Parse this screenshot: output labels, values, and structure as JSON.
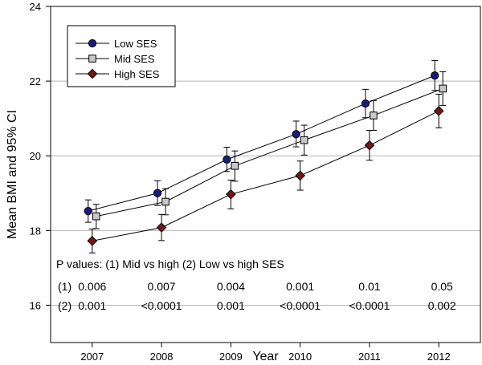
{
  "chart_data": {
    "type": "line",
    "title": "",
    "xlabel": "Year",
    "ylabel": "Mean BMI and 95% CI",
    "x": [
      2007,
      2008,
      2009,
      2010,
      2011,
      2012
    ],
    "xlim": [
      2006.4,
      2012.6
    ],
    "ylim": [
      15,
      24
    ],
    "yticks": [
      16,
      18,
      20,
      22,
      24
    ],
    "gridlines_y": [
      16,
      18,
      20,
      22
    ],
    "grid": "horizontal",
    "legend_position": "top-left",
    "series": [
      {
        "name": "Low SES",
        "marker": "circle",
        "color": "#1a1a7e",
        "values": [
          18.52,
          19.0,
          19.9,
          20.58,
          21.4,
          22.15
        ],
        "ci_low": [
          18.22,
          18.67,
          19.58,
          20.24,
          21.02,
          21.75
        ],
        "ci_high": [
          18.82,
          19.33,
          20.23,
          20.93,
          21.78,
          22.55
        ]
      },
      {
        "name": "Mid SES",
        "marker": "square",
        "color": "#c8c8c8",
        "values": [
          18.38,
          18.77,
          19.73,
          20.42,
          21.08,
          21.8
        ],
        "ci_low": [
          18.05,
          18.42,
          19.32,
          20.02,
          20.68,
          21.35
        ],
        "ci_high": [
          18.7,
          19.12,
          20.13,
          20.82,
          21.48,
          22.25
        ]
      },
      {
        "name": "High SES",
        "marker": "diamond",
        "color": "#7a1414",
        "values": [
          17.72,
          18.08,
          18.97,
          19.47,
          20.28,
          21.2
        ],
        "ci_low": [
          17.4,
          17.73,
          18.58,
          19.08,
          19.88,
          20.75
        ],
        "ci_high": [
          18.04,
          18.43,
          19.35,
          19.86,
          20.68,
          21.65
        ]
      }
    ],
    "annotation": {
      "heading": "P values: (1) Mid vs high (2) Low vs high SES",
      "rows": [
        {
          "label": "(1)",
          "values": [
            "0.006",
            "0.007",
            "0.004",
            "0.001",
            "0.01",
            "0.05"
          ]
        },
        {
          "label": "(2)",
          "values": [
            "0.001",
            "<0.0001",
            "0.001",
            "<0.0001",
            "<0.0001",
            "0.002"
          ]
        }
      ]
    }
  }
}
